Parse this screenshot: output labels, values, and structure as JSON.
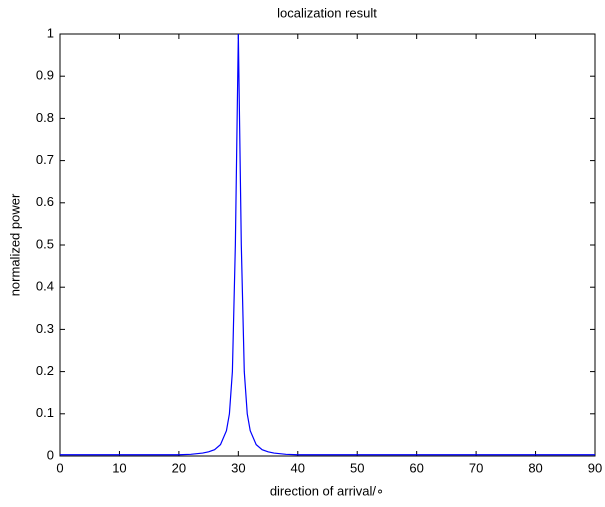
{
  "chart_data": {
    "type": "line",
    "title": "localization result",
    "x_label": "direction of arrival/∘",
    "y_label": "normalized power",
    "x": [
      0,
      5,
      10,
      15,
      20,
      22,
      24,
      25,
      26,
      27,
      28,
      28.5,
      29,
      29.5,
      30,
      30.5,
      31,
      31.5,
      32,
      33,
      34,
      35,
      36,
      38,
      40,
      45,
      50,
      60,
      70,
      80,
      90
    ],
    "series": [
      {
        "color": "#0000ff",
        "values": [
          0.003,
          0.003,
          0.003,
          0.003,
          0.003,
          0.004,
          0.007,
          0.01,
          0.015,
          0.027,
          0.06,
          0.1,
          0.2,
          0.5,
          1,
          0.5,
          0.2,
          0.1,
          0.06,
          0.027,
          0.015,
          0.01,
          0.007,
          0.004,
          0.003,
          0.003,
          0.003,
          0.003,
          0.003,
          0.003,
          0.003
        ]
      }
    ],
    "xlim": [
      0,
      90
    ],
    "xticks": [
      0,
      10,
      20,
      30,
      40,
      50,
      60,
      70,
      80,
      90
    ],
    "ylim": [
      0,
      1
    ],
    "yticks": [
      0,
      0.1,
      0.2,
      0.3,
      0.4,
      0.5,
      0.6,
      0.7,
      0.8,
      0.9,
      1
    ],
    "grid": false
  }
}
